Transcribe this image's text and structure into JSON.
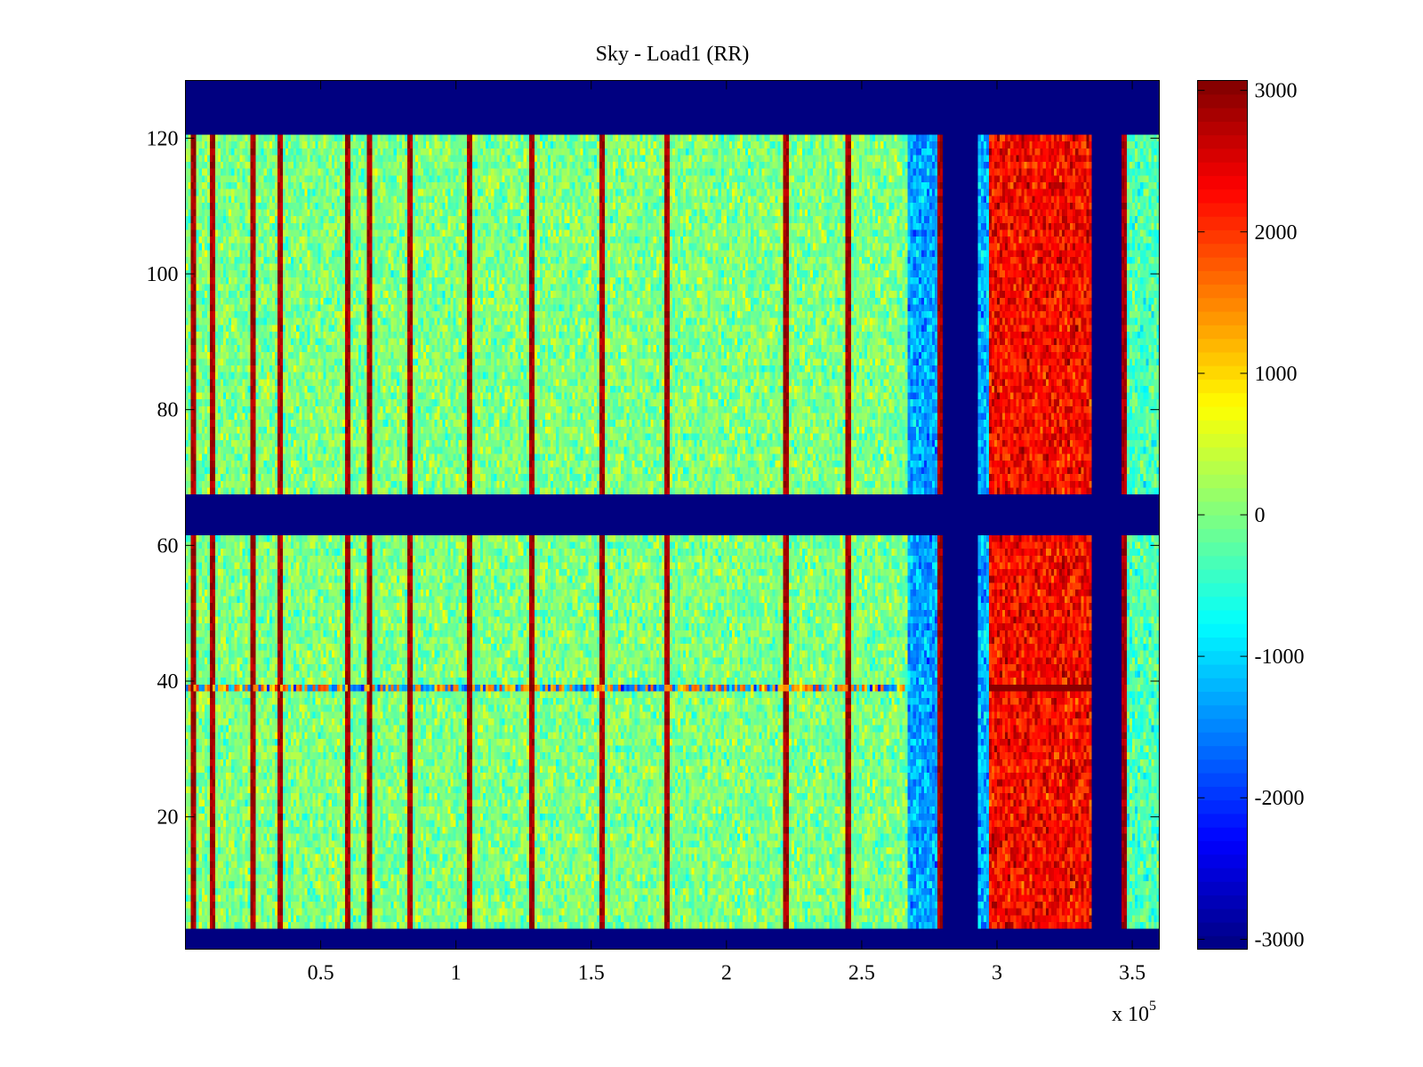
{
  "chart_data": {
    "type": "heatmap",
    "title": "Sky - Load1 (RR)",
    "xlabel": "",
    "ylabel": "",
    "x_multiplier_label": {
      "prefix": "x 10",
      "exponent": "5"
    },
    "xlim": [
      0,
      3.6
    ],
    "ylim": [
      0.5,
      128.5
    ],
    "x_ticks": [
      0.5,
      1,
      1.5,
      2,
      2.5,
      3,
      3.5
    ],
    "x_tick_labels": [
      "0.5",
      "1",
      "1.5",
      "2",
      "2.5",
      "3",
      "3.5"
    ],
    "y_ticks": [
      20,
      40,
      60,
      80,
      100,
      120
    ],
    "y_tick_labels": [
      "20",
      "40",
      "60",
      "80",
      "100",
      "120"
    ],
    "grid": false,
    "colormap": "jet",
    "clim": [
      -3070,
      3070
    ],
    "colorbar": {
      "position": "right",
      "ticks": [
        3000,
        2000,
        1000,
        0,
        -1000,
        -2000,
        -3000
      ],
      "tick_labels": [
        "3000",
        "2000",
        "1000",
        "0",
        "-1000",
        "-2000",
        "-3000"
      ]
    },
    "n_rows": 128,
    "n_cols": 360,
    "masked_rows": [
      {
        "from": 1,
        "to": 3,
        "value": -3070
      },
      {
        "from": 62,
        "to": 67,
        "value": -3070
      },
      {
        "from": 121,
        "to": 128,
        "value": -3070
      }
    ],
    "background_level": 0,
    "background_noise": 450,
    "column_regions": [
      {
        "x_from": 2.67,
        "x_to": 2.8,
        "level": -1300,
        "label": "cyan band"
      },
      {
        "x_from": 2.8,
        "x_to": 2.93,
        "level": -3070,
        "label": "blue gap"
      },
      {
        "x_from": 2.93,
        "x_to": 2.97,
        "level": -1200,
        "label": "cyan edge"
      },
      {
        "x_from": 2.97,
        "x_to": 3.35,
        "level": 2300,
        "label": "red block"
      },
      {
        "x_from": 3.35,
        "x_to": 3.46,
        "level": -3070,
        "label": "blue gap"
      },
      {
        "x_from": 3.46,
        "x_to": 3.6,
        "level": -300,
        "label": "right band"
      }
    ],
    "red_lines_x": [
      0.03,
      0.1,
      0.25,
      0.35,
      0.6,
      0.68,
      0.83,
      1.05,
      1.28,
      1.54,
      1.78,
      2.22,
      2.45,
      2.79,
      3.47
    ],
    "anomaly_row": 39
  }
}
